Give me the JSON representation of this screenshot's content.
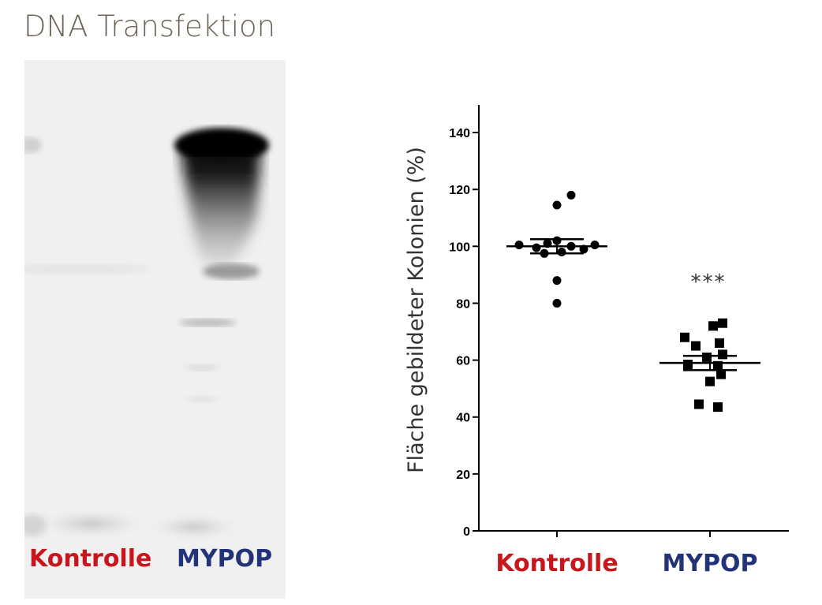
{
  "page": {
    "title": "DNA Transfektion"
  },
  "blot": {
    "lane_labels": [
      "Kontrolle",
      "MYPOP"
    ]
  },
  "colors": {
    "title": "#6b6354",
    "kontrolle": "#c8161d",
    "mypop": "#233378",
    "axis": "#000000",
    "significance": "#333333"
  },
  "chart_data": {
    "type": "scatter",
    "title": "",
    "xlabel": "",
    "ylabel": "Fläche gebildeter Kolonien (%)",
    "ylim": [
      0,
      140
    ],
    "yticks": [
      0,
      20,
      40,
      60,
      80,
      100,
      120,
      140
    ],
    "categories": [
      "Kontrolle",
      "MYPOP"
    ],
    "grid": false,
    "series": [
      {
        "name": "Kontrolle",
        "marker": "circle",
        "values": [
          118,
          114.5,
          102,
          101,
          100.5,
          100.5,
          100,
          99.5,
          99,
          98,
          97.5,
          88,
          80
        ],
        "mean": 100,
        "sem": [
          97.5,
          102.5
        ]
      },
      {
        "name": "MYPOP",
        "marker": "square",
        "values": [
          73,
          72,
          68,
          66,
          65,
          62,
          61,
          58.5,
          58,
          55,
          52.5,
          44.5,
          43.5
        ],
        "mean": 59,
        "sem": [
          56.5,
          61.5
        ]
      }
    ],
    "annotations": [
      {
        "text": "***",
        "category": "MYPOP",
        "y": 89
      }
    ]
  }
}
